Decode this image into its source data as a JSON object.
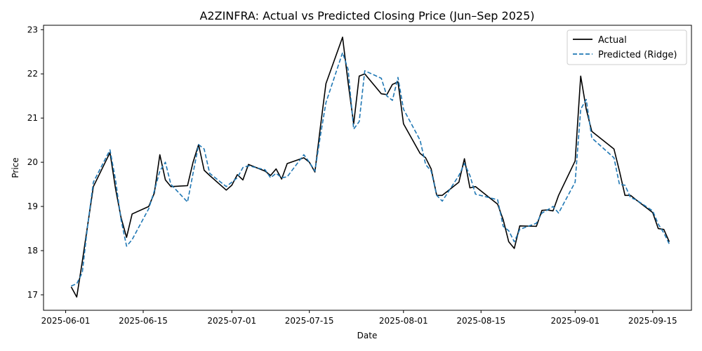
{
  "chart_data": {
    "type": "line",
    "title": "A2ZINFRA: Actual vs Predicted Closing Price (Jun–Sep 2025)",
    "xlabel": "Date",
    "ylabel": "Price",
    "xlim": [
      "2025-05-28",
      "2025-09-22"
    ],
    "ylim": [
      16.65,
      23.1
    ],
    "x_ticks": [
      "2025-06-01",
      "2025-06-15",
      "2025-07-01",
      "2025-07-15",
      "2025-08-01",
      "2025-08-15",
      "2025-09-01",
      "2025-09-15"
    ],
    "y_ticks": [
      17,
      18,
      19,
      20,
      21,
      22,
      23
    ],
    "grid": false,
    "legend": "top-right",
    "series": [
      {
        "name": "Actual",
        "color": "#000000",
        "style": "solid",
        "points": [
          [
            "2025-06-02",
            17.18
          ],
          [
            "2025-06-03",
            16.95
          ],
          [
            "2025-06-04",
            17.75
          ],
          [
            "2025-06-05",
            18.6
          ],
          [
            "2025-06-06",
            19.45
          ],
          [
            "2025-06-09",
            20.22
          ],
          [
            "2025-06-10",
            19.4
          ],
          [
            "2025-06-11",
            18.75
          ],
          [
            "2025-06-12",
            18.3
          ],
          [
            "2025-06-13",
            18.83
          ],
          [
            "2025-06-16",
            19.0
          ],
          [
            "2025-06-17",
            19.3
          ],
          [
            "2025-06-18",
            20.17
          ],
          [
            "2025-06-19",
            19.6
          ],
          [
            "2025-06-20",
            19.45
          ],
          [
            "2025-06-23",
            19.47
          ],
          [
            "2025-06-24",
            20.0
          ],
          [
            "2025-06-25",
            20.4
          ],
          [
            "2025-06-26",
            19.82
          ],
          [
            "2025-06-27",
            19.7
          ],
          [
            "2025-06-30",
            19.37
          ],
          [
            "2025-07-01",
            19.48
          ],
          [
            "2025-07-02",
            19.72
          ],
          [
            "2025-07-03",
            19.6
          ],
          [
            "2025-07-04",
            19.95
          ],
          [
            "2025-07-07",
            19.8
          ],
          [
            "2025-07-08",
            19.7
          ],
          [
            "2025-07-09",
            19.85
          ],
          [
            "2025-07-10",
            19.62
          ],
          [
            "2025-07-11",
            19.97
          ],
          [
            "2025-07-14",
            20.1
          ],
          [
            "2025-07-15",
            20.0
          ],
          [
            "2025-07-16",
            19.78
          ],
          [
            "2025-07-17",
            20.8
          ],
          [
            "2025-07-18",
            21.78
          ],
          [
            "2025-07-21",
            22.83
          ],
          [
            "2025-07-22",
            21.8
          ],
          [
            "2025-07-23",
            20.87
          ],
          [
            "2025-07-24",
            21.95
          ],
          [
            "2025-07-25",
            22.0
          ],
          [
            "2025-07-28",
            21.55
          ],
          [
            "2025-07-29",
            21.53
          ],
          [
            "2025-07-30",
            21.76
          ],
          [
            "2025-07-31",
            21.82
          ],
          [
            "2025-08-01",
            20.87
          ],
          [
            "2025-08-04",
            20.2
          ],
          [
            "2025-08-05",
            20.1
          ],
          [
            "2025-08-06",
            19.85
          ],
          [
            "2025-08-07",
            19.25
          ],
          [
            "2025-08-08",
            19.25
          ],
          [
            "2025-08-11",
            19.55
          ],
          [
            "2025-08-12",
            20.08
          ],
          [
            "2025-08-13",
            19.42
          ],
          [
            "2025-08-14",
            19.45
          ],
          [
            "2025-08-18",
            19.05
          ],
          [
            "2025-08-19",
            18.7
          ],
          [
            "2025-08-20",
            18.2
          ],
          [
            "2025-08-21",
            18.05
          ],
          [
            "2025-08-22",
            18.56
          ],
          [
            "2025-08-25",
            18.55
          ],
          [
            "2025-08-26",
            18.91
          ],
          [
            "2025-08-27",
            18.92
          ],
          [
            "2025-08-28",
            18.9
          ],
          [
            "2025-08-29",
            19.25
          ],
          [
            "2025-09-01",
            20.03
          ],
          [
            "2025-09-02",
            21.95
          ],
          [
            "2025-09-03",
            21.2
          ],
          [
            "2025-09-04",
            20.7
          ],
          [
            "2025-09-08",
            20.3
          ],
          [
            "2025-09-09",
            19.8
          ],
          [
            "2025-09-10",
            19.25
          ],
          [
            "2025-09-11",
            19.25
          ],
          [
            "2025-09-12",
            19.15
          ],
          [
            "2025-09-15",
            18.86
          ],
          [
            "2025-09-16",
            18.5
          ],
          [
            "2025-09-17",
            18.48
          ],
          [
            "2025-09-18",
            18.2
          ]
        ]
      },
      {
        "name": "Predicted (Ridge)",
        "color": "#1f77b4",
        "style": "dashed",
        "points": [
          [
            "2025-06-02",
            17.2
          ],
          [
            "2025-06-03",
            17.25
          ],
          [
            "2025-06-04",
            17.5
          ],
          [
            "2025-06-05",
            18.6
          ],
          [
            "2025-06-06",
            19.55
          ],
          [
            "2025-06-09",
            20.28
          ],
          [
            "2025-06-10",
            19.6
          ],
          [
            "2025-06-11",
            18.7
          ],
          [
            "2025-06-12",
            18.1
          ],
          [
            "2025-06-13",
            18.25
          ],
          [
            "2025-06-16",
            18.95
          ],
          [
            "2025-06-17",
            19.35
          ],
          [
            "2025-06-18",
            19.8
          ],
          [
            "2025-06-19",
            20.0
          ],
          [
            "2025-06-20",
            19.5
          ],
          [
            "2025-06-23",
            19.1
          ],
          [
            "2025-06-24",
            19.75
          ],
          [
            "2025-06-25",
            20.4
          ],
          [
            "2025-06-26",
            20.3
          ],
          [
            "2025-06-27",
            19.75
          ],
          [
            "2025-06-30",
            19.45
          ],
          [
            "2025-07-01",
            19.55
          ],
          [
            "2025-07-02",
            19.65
          ],
          [
            "2025-07-03",
            19.88
          ],
          [
            "2025-07-04",
            19.92
          ],
          [
            "2025-07-07",
            19.83
          ],
          [
            "2025-07-08",
            19.65
          ],
          [
            "2025-07-09",
            19.75
          ],
          [
            "2025-07-10",
            19.65
          ],
          [
            "2025-07-11",
            19.67
          ],
          [
            "2025-07-14",
            20.17
          ],
          [
            "2025-07-15",
            20.0
          ],
          [
            "2025-07-16",
            19.8
          ],
          [
            "2025-07-17",
            20.6
          ],
          [
            "2025-07-18",
            21.35
          ],
          [
            "2025-07-21",
            22.48
          ],
          [
            "2025-07-22",
            22.1
          ],
          [
            "2025-07-23",
            20.75
          ],
          [
            "2025-07-24",
            20.92
          ],
          [
            "2025-07-25",
            22.07
          ],
          [
            "2025-07-28",
            21.9
          ],
          [
            "2025-07-29",
            21.5
          ],
          [
            "2025-07-30",
            21.4
          ],
          [
            "2025-07-31",
            21.92
          ],
          [
            "2025-08-01",
            21.2
          ],
          [
            "2025-08-04",
            20.5
          ],
          [
            "2025-08-05",
            19.95
          ],
          [
            "2025-08-06",
            19.8
          ],
          [
            "2025-08-07",
            19.25
          ],
          [
            "2025-08-08",
            19.12
          ],
          [
            "2025-08-11",
            19.7
          ],
          [
            "2025-08-12",
            19.97
          ],
          [
            "2025-08-13",
            19.7
          ],
          [
            "2025-08-14",
            19.28
          ],
          [
            "2025-08-18",
            19.15
          ],
          [
            "2025-08-19",
            18.55
          ],
          [
            "2025-08-20",
            18.45
          ],
          [
            "2025-08-21",
            18.2
          ],
          [
            "2025-08-22",
            18.48
          ],
          [
            "2025-08-25",
            18.62
          ],
          [
            "2025-08-26",
            18.85
          ],
          [
            "2025-08-27",
            18.92
          ],
          [
            "2025-08-28",
            19.0
          ],
          [
            "2025-08-29",
            18.85
          ],
          [
            "2025-09-01",
            19.55
          ],
          [
            "2025-09-02",
            21.2
          ],
          [
            "2025-09-03",
            21.42
          ],
          [
            "2025-09-04",
            20.55
          ],
          [
            "2025-09-08",
            20.1
          ],
          [
            "2025-09-09",
            19.5
          ],
          [
            "2025-09-10",
            19.48
          ],
          [
            "2025-09-11",
            19.2
          ],
          [
            "2025-09-12",
            19.15
          ],
          [
            "2025-09-15",
            18.9
          ],
          [
            "2025-09-16",
            18.6
          ],
          [
            "2025-09-17",
            18.4
          ],
          [
            "2025-09-18",
            18.15
          ]
        ]
      }
    ]
  }
}
